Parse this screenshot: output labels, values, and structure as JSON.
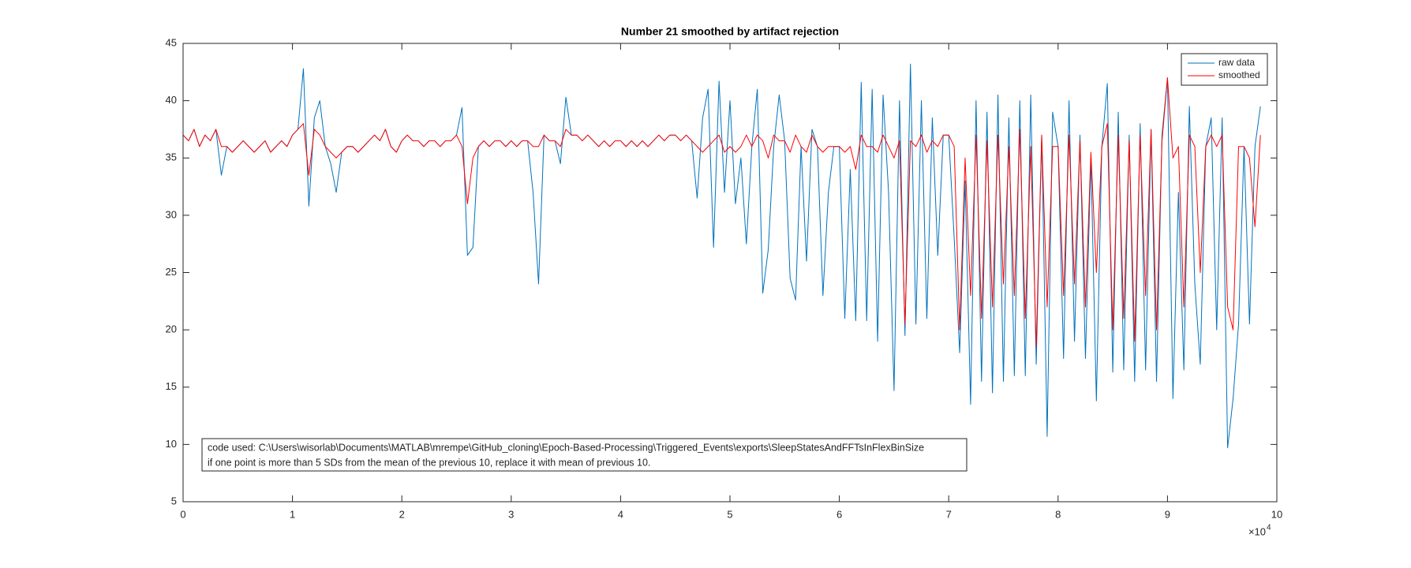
{
  "chart_data": {
    "type": "line",
    "title": "Number 21 smoothed by artifact rejection",
    "x_multiplier": {
      "base": "×10",
      "exponent": "4"
    },
    "annotation": [
      "code used: C:\\Users\\wisorlab\\Documents\\MATLAB\\mrempe\\GitHub_cloning\\Epoch-Based-Processing\\Triggered_Events\\exports\\SleepStatesAndFFTsInFlexBinSize",
      "if one point is more than 5 SDs from the mean of the previous 10, replace it with mean of previous 10."
    ],
    "legend": "northeast",
    "xlim": [
      0,
      10
    ],
    "xticks": [
      0,
      1,
      2,
      3,
      4,
      5,
      6,
      7,
      8,
      9,
      10
    ],
    "ylim": [
      5,
      45
    ],
    "yticks": [
      5,
      10,
      15,
      20,
      25,
      30,
      35,
      40,
      45
    ],
    "x": [
      0,
      0.05,
      0.1,
      0.15,
      0.2,
      0.25,
      0.3,
      0.35,
      0.4,
      0.45,
      0.5,
      0.55,
      0.6,
      0.65,
      0.7,
      0.75,
      0.8,
      0.85,
      0.9,
      0.95,
      1,
      1.05,
      1.1,
      1.15,
      1.2,
      1.25,
      1.3,
      1.35,
      1.4,
      1.45,
      1.5,
      1.55,
      1.6,
      1.65,
      1.7,
      1.75,
      1.8,
      1.85,
      1.9,
      1.95,
      2,
      2.05,
      2.1,
      2.15,
      2.2,
      2.25,
      2.3,
      2.35,
      2.4,
      2.45,
      2.5,
      2.55,
      2.6,
      2.65,
      2.7,
      2.75,
      2.8,
      2.85,
      2.9,
      2.95,
      3,
      3.05,
      3.1,
      3.15,
      3.2,
      3.25,
      3.3,
      3.35,
      3.4,
      3.45,
      3.5,
      3.55,
      3.6,
      3.65,
      3.7,
      3.75,
      3.8,
      3.85,
      3.9,
      3.95,
      4,
      4.05,
      4.1,
      4.15,
      4.2,
      4.25,
      4.3,
      4.35,
      4.4,
      4.45,
      4.5,
      4.55,
      4.6,
      4.65,
      4.7,
      4.75,
      4.8,
      4.85,
      4.9,
      4.95,
      5,
      5.05,
      5.1,
      5.15,
      5.2,
      5.25,
      5.3,
      5.35,
      5.4,
      5.45,
      5.5,
      5.55,
      5.6,
      5.65,
      5.7,
      5.75,
      5.8,
      5.85,
      5.9,
      5.95,
      6,
      6.05,
      6.1,
      6.15,
      6.2,
      6.25,
      6.3,
      6.35,
      6.4,
      6.45,
      6.5,
      6.55,
      6.6,
      6.65,
      6.7,
      6.75,
      6.8,
      6.85,
      6.9,
      6.95,
      7,
      7.05,
      7.1,
      7.15,
      7.2,
      7.25,
      7.3,
      7.35,
      7.4,
      7.45,
      7.5,
      7.55,
      7.6,
      7.65,
      7.7,
      7.75,
      7.8,
      7.85,
      7.9,
      7.95,
      8,
      8.05,
      8.1,
      8.15,
      8.2,
      8.25,
      8.3,
      8.35,
      8.4,
      8.45,
      8.5,
      8.55,
      8.6,
      8.65,
      8.7,
      8.75,
      8.8,
      8.85,
      8.9,
      8.95,
      9,
      9.05,
      9.1,
      9.15,
      9.2,
      9.25,
      9.3,
      9.35,
      9.4,
      9.45,
      9.5,
      9.55,
      9.6,
      9.65,
      9.7,
      9.75,
      9.8,
      9.85
    ],
    "series": [
      {
        "name": "raw data",
        "color": "#0072bd",
        "values": [
          37,
          36.5,
          37.5,
          36,
          37,
          36.5,
          37.5,
          33.5,
          36,
          35.5,
          36,
          36.5,
          36,
          35.5,
          36,
          36.5,
          35.5,
          36,
          36.5,
          36,
          37,
          37.5,
          42.8,
          30.8,
          38.5,
          40,
          36,
          34.5,
          32,
          35.5,
          36,
          36,
          35.5,
          36,
          36.5,
          37,
          36.5,
          37.5,
          36,
          35.5,
          36.5,
          37,
          36.5,
          36.5,
          36,
          36.5,
          36.5,
          36,
          36.5,
          36.5,
          37,
          39.4,
          26.5,
          27.2,
          36,
          36.5,
          36,
          36.5,
          36.5,
          36,
          36.5,
          36,
          36.5,
          36.5,
          32,
          24,
          37,
          36.5,
          36.5,
          34.5,
          40.3,
          37,
          37,
          36.5,
          37,
          36.5,
          36,
          36.5,
          36,
          36.5,
          36.5,
          36,
          36.5,
          36,
          36.5,
          36,
          36.5,
          37,
          36.5,
          37,
          37,
          36.5,
          37,
          36.5,
          31.5,
          38.5,
          41,
          27.2,
          41.7,
          32,
          40,
          31,
          35,
          27.5,
          36,
          41,
          23.2,
          27,
          36,
          40.5,
          36.5,
          24.5,
          22.6,
          36,
          26,
          37.5,
          36,
          23,
          32,
          36,
          36,
          21,
          34,
          20.8,
          41.6,
          20.8,
          41,
          19,
          40.5,
          32,
          14.7,
          40,
          19.5,
          43.2,
          20.5,
          40,
          21,
          38.5,
          26.5,
          37,
          37,
          28,
          18,
          33,
          13.5,
          40,
          15.5,
          39,
          14.5,
          40.5,
          15.5,
          38.5,
          16,
          40,
          16,
          40.5,
          17,
          37,
          10.7,
          39,
          36,
          17.5,
          40,
          19,
          37,
          17.5,
          35,
          13.8,
          36,
          41.5,
          16.3,
          39,
          16.5,
          37,
          15.5,
          38,
          16.5,
          37.5,
          15.5,
          37,
          42,
          14,
          32,
          16.5,
          39.5,
          24,
          17,
          36,
          38.5,
          20,
          38.5,
          9.7,
          14,
          20.5,
          36,
          20.5,
          36,
          39.5
        ]
      },
      {
        "name": "smoothed",
        "color": "#ff0000",
        "values": [
          37,
          36.5,
          37.5,
          36,
          37,
          36.5,
          37.5,
          36,
          36,
          35.5,
          36,
          36.5,
          36,
          35.5,
          36,
          36.5,
          35.5,
          36,
          36.5,
          36,
          37,
          37.5,
          38,
          33.5,
          37.5,
          37,
          36,
          35.5,
          35,
          35.5,
          36,
          36,
          35.5,
          36,
          36.5,
          37,
          36.5,
          37.5,
          36,
          35.5,
          36.5,
          37,
          36.5,
          36.5,
          36,
          36.5,
          36.5,
          36,
          36.5,
          36.5,
          37,
          36,
          31,
          35,
          36,
          36.5,
          36,
          36.5,
          36.5,
          36,
          36.5,
          36,
          36.5,
          36.5,
          36,
          36,
          37,
          36.5,
          36.5,
          36,
          37.5,
          37,
          37,
          36.5,
          37,
          36.5,
          36,
          36.5,
          36,
          36.5,
          36.5,
          36,
          36.5,
          36,
          36.5,
          36,
          36.5,
          37,
          36.5,
          37,
          37,
          36.5,
          37,
          36.5,
          36,
          35.5,
          36,
          36.5,
          37,
          35.5,
          36,
          35.5,
          36,
          37,
          36,
          37,
          36.5,
          35,
          37,
          36.5,
          36.5,
          35.5,
          37,
          36,
          35.5,
          37,
          36,
          35.5,
          36,
          36,
          36,
          35.5,
          36,
          34,
          37,
          36,
          36,
          35.5,
          37,
          36,
          35,
          36.5,
          20.5,
          36.5,
          36,
          37,
          35.5,
          36.5,
          36,
          37,
          37,
          36,
          20,
          35,
          23,
          37,
          21,
          36.5,
          22,
          37,
          24,
          36,
          23,
          37.5,
          21,
          36,
          18.5,
          37,
          22,
          36,
          36,
          23,
          37,
          24,
          36.5,
          22,
          35.5,
          25,
          36,
          38,
          20,
          37,
          21,
          36.5,
          19,
          37,
          23,
          37.5,
          20,
          36.5,
          42,
          35,
          36,
          22,
          37,
          36,
          25,
          36,
          37,
          36,
          37,
          22,
          20,
          36,
          36,
          35,
          29,
          37
        ]
      }
    ]
  }
}
